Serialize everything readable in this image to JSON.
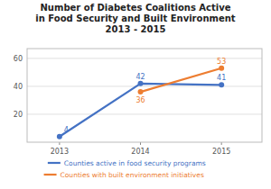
{
  "chart_data": {
    "type": "line",
    "title": "Number of Diabetes Coalitions Active\nin Food Security and Built Environment\n2013 - 2015",
    "x": [
      2013,
      2014,
      2015
    ],
    "series": [
      {
        "name": "Counties active in food security programs",
        "color": "#4472C4",
        "values": [
          4,
          42,
          41
        ]
      },
      {
        "name": "Counties with built environment initiatives",
        "color": "#ED7D31",
        "values": [
          null,
          36,
          53
        ]
      }
    ],
    "xlim": [
      2012.6,
      2015.5
    ],
    "xticks": [
      2013,
      2014,
      2015
    ],
    "ylim": [
      0,
      67
    ],
    "yticks": [
      20,
      40,
      60
    ],
    "grid": true,
    "legend": "bottom",
    "marker": "circle",
    "data_labels": true
  }
}
